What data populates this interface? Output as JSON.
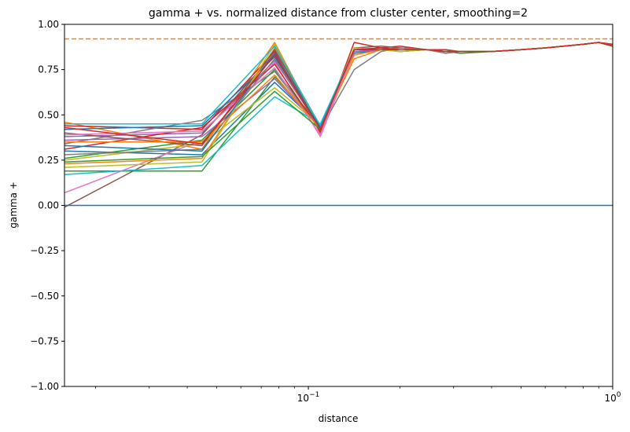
{
  "chart_data": {
    "type": "line",
    "title": "gamma + vs. normalized distance from cluster center, smoothing=2",
    "xlabel": "distance",
    "ylabel": "gamma +",
    "xscale": "log",
    "xlim": [
      0.0158,
      1.0
    ],
    "ylim": [
      -1.0,
      1.0
    ],
    "grid": false,
    "x_major_ticks": [
      {
        "value": 0.1,
        "base": "10",
        "exp": "−1"
      },
      {
        "value": 1.0,
        "base": "10",
        "exp": "0"
      }
    ],
    "y_ticks": [
      {
        "value": 1.0,
        "label": "1.00"
      },
      {
        "value": 0.75,
        "label": "0.75"
      },
      {
        "value": 0.5,
        "label": "0.50"
      },
      {
        "value": 0.25,
        "label": "0.25"
      },
      {
        "value": 0.0,
        "label": "0.00"
      },
      {
        "value": -0.25,
        "label": "−0.25"
      },
      {
        "value": -0.5,
        "label": "−0.50"
      },
      {
        "value": -0.75,
        "label": "−0.75"
      },
      {
        "value": -1.0,
        "label": "−1.00"
      }
    ],
    "reference_lines": [
      {
        "y": 0.0,
        "color": "#1f77b4",
        "style": "solid"
      },
      {
        "y": 0.92,
        "color": "#ff7f0e",
        "style": "dashed"
      }
    ],
    "x": [
      0.0158,
      0.0447,
      0.0775,
      0.1095,
      0.1414,
      0.1732,
      0.2,
      0.2449,
      0.2828,
      0.3162,
      0.4,
      0.5,
      0.6,
      0.8,
      0.9,
      1.0
    ],
    "series": [
      {
        "color": "#1f77b4",
        "values": [
          0.3,
          0.28,
          0.68,
          0.44,
          0.84,
          0.86,
          0.87,
          0.86,
          0.85,
          0.85,
          0.85,
          0.86,
          0.87,
          0.89,
          0.9,
          0.88
        ]
      },
      {
        "color": "#ff7f0e",
        "values": [
          0.46,
          0.31,
          0.9,
          0.42,
          0.83,
          0.86,
          0.85,
          0.86,
          0.85,
          0.85,
          0.85,
          0.86,
          0.87,
          0.89,
          0.9,
          0.89
        ]
      },
      {
        "color": "#2ca02c",
        "values": [
          0.19,
          0.19,
          0.71,
          0.44,
          0.86,
          0.87,
          0.85,
          0.86,
          0.85,
          0.84,
          0.85,
          0.86,
          0.87,
          0.89,
          0.9,
          0.88
        ]
      },
      {
        "color": "#d62728",
        "values": [
          0.44,
          0.42,
          0.85,
          0.4,
          0.9,
          0.87,
          0.88,
          0.86,
          0.86,
          0.85,
          0.85,
          0.86,
          0.87,
          0.89,
          0.9,
          0.89
        ]
      },
      {
        "color": "#9467bd",
        "values": [
          0.38,
          0.4,
          0.8,
          0.43,
          0.85,
          0.86,
          0.87,
          0.86,
          0.85,
          0.85,
          0.85,
          0.86,
          0.87,
          0.89,
          0.9,
          0.88
        ]
      },
      {
        "color": "#8c564b",
        "values": [
          -0.01,
          0.39,
          0.84,
          0.41,
          0.87,
          0.88,
          0.87,
          0.86,
          0.85,
          0.85,
          0.85,
          0.86,
          0.87,
          0.89,
          0.9,
          0.88
        ]
      },
      {
        "color": "#e377c2",
        "values": [
          0.07,
          0.36,
          0.79,
          0.38,
          0.85,
          0.86,
          0.86,
          0.86,
          0.85,
          0.85,
          0.85,
          0.86,
          0.87,
          0.89,
          0.9,
          0.88
        ]
      },
      {
        "color": "#7f7f7f",
        "values": [
          0.34,
          0.47,
          0.74,
          0.42,
          0.75,
          0.85,
          0.87,
          0.86,
          0.84,
          0.85,
          0.85,
          0.86,
          0.87,
          0.89,
          0.9,
          0.88
        ]
      },
      {
        "color": "#bcbd22",
        "values": [
          0.25,
          0.34,
          0.65,
          0.44,
          0.87,
          0.86,
          0.85,
          0.86,
          0.85,
          0.85,
          0.85,
          0.86,
          0.87,
          0.89,
          0.9,
          0.88
        ]
      },
      {
        "color": "#17becf",
        "values": [
          0.17,
          0.22,
          0.6,
          0.45,
          0.86,
          0.87,
          0.86,
          0.86,
          0.85,
          0.85,
          0.85,
          0.86,
          0.87,
          0.89,
          0.9,
          0.88
        ]
      },
      {
        "color": "#1f77b4",
        "values": [
          0.42,
          0.44,
          0.82,
          0.43,
          0.86,
          0.86,
          0.86,
          0.86,
          0.85,
          0.85,
          0.85,
          0.86,
          0.87,
          0.89,
          0.9,
          0.88
        ]
      },
      {
        "color": "#ff7f0e",
        "values": [
          0.23,
          0.26,
          0.87,
          0.42,
          0.81,
          0.86,
          0.86,
          0.86,
          0.85,
          0.85,
          0.85,
          0.86,
          0.87,
          0.89,
          0.9,
          0.88
        ]
      },
      {
        "color": "#2ca02c",
        "values": [
          0.26,
          0.36,
          0.75,
          0.43,
          0.86,
          0.86,
          0.86,
          0.86,
          0.85,
          0.85,
          0.85,
          0.86,
          0.87,
          0.89,
          0.9,
          0.88
        ]
      },
      {
        "color": "#d62728",
        "values": [
          0.31,
          0.43,
          0.78,
          0.41,
          0.86,
          0.87,
          0.86,
          0.86,
          0.85,
          0.85,
          0.85,
          0.86,
          0.87,
          0.89,
          0.9,
          0.88
        ]
      },
      {
        "color": "#9467bd",
        "values": [
          0.36,
          0.38,
          0.7,
          0.43,
          0.85,
          0.86,
          0.86,
          0.86,
          0.85,
          0.85,
          0.85,
          0.86,
          0.87,
          0.89,
          0.9,
          0.88
        ]
      },
      {
        "color": "#8c564b",
        "values": [
          0.4,
          0.33,
          0.86,
          0.43,
          0.86,
          0.86,
          0.86,
          0.86,
          0.85,
          0.85,
          0.85,
          0.86,
          0.87,
          0.89,
          0.9,
          0.88
        ]
      },
      {
        "color": "#e377c2",
        "values": [
          0.39,
          0.41,
          0.76,
          0.39,
          0.86,
          0.86,
          0.86,
          0.86,
          0.85,
          0.85,
          0.85,
          0.86,
          0.87,
          0.89,
          0.9,
          0.88
        ]
      },
      {
        "color": "#7f7f7f",
        "values": [
          0.28,
          0.31,
          0.81,
          0.42,
          0.86,
          0.86,
          0.86,
          0.86,
          0.85,
          0.85,
          0.85,
          0.86,
          0.87,
          0.89,
          0.9,
          0.88
        ]
      },
      {
        "color": "#bcbd22",
        "values": [
          0.21,
          0.24,
          0.89,
          0.43,
          0.86,
          0.86,
          0.86,
          0.86,
          0.85,
          0.85,
          0.85,
          0.86,
          0.87,
          0.89,
          0.9,
          0.88
        ]
      },
      {
        "color": "#17becf",
        "values": [
          0.45,
          0.45,
          0.88,
          0.44,
          0.86,
          0.86,
          0.86,
          0.86,
          0.85,
          0.85,
          0.85,
          0.86,
          0.87,
          0.89,
          0.9,
          0.88
        ]
      },
      {
        "color": "#1f77b4",
        "values": [
          0.33,
          0.3,
          0.84,
          0.43,
          0.86,
          0.86,
          0.86,
          0.86,
          0.85,
          0.85,
          0.85,
          0.86,
          0.87,
          0.89,
          0.9,
          0.88
        ]
      },
      {
        "color": "#ff7f0e",
        "values": [
          0.35,
          0.35,
          0.72,
          0.42,
          0.86,
          0.86,
          0.86,
          0.86,
          0.85,
          0.85,
          0.85,
          0.86,
          0.87,
          0.89,
          0.9,
          0.88
        ]
      },
      {
        "color": "#2ca02c",
        "values": [
          0.24,
          0.27,
          0.63,
          0.42,
          0.86,
          0.86,
          0.86,
          0.86,
          0.85,
          0.85,
          0.85,
          0.86,
          0.87,
          0.89,
          0.9,
          0.88
        ]
      },
      {
        "color": "#d62728",
        "values": [
          0.43,
          0.34,
          0.83,
          0.42,
          0.86,
          0.86,
          0.86,
          0.86,
          0.85,
          0.85,
          0.85,
          0.86,
          0.87,
          0.89,
          0.9,
          0.88
        ]
      }
    ]
  }
}
